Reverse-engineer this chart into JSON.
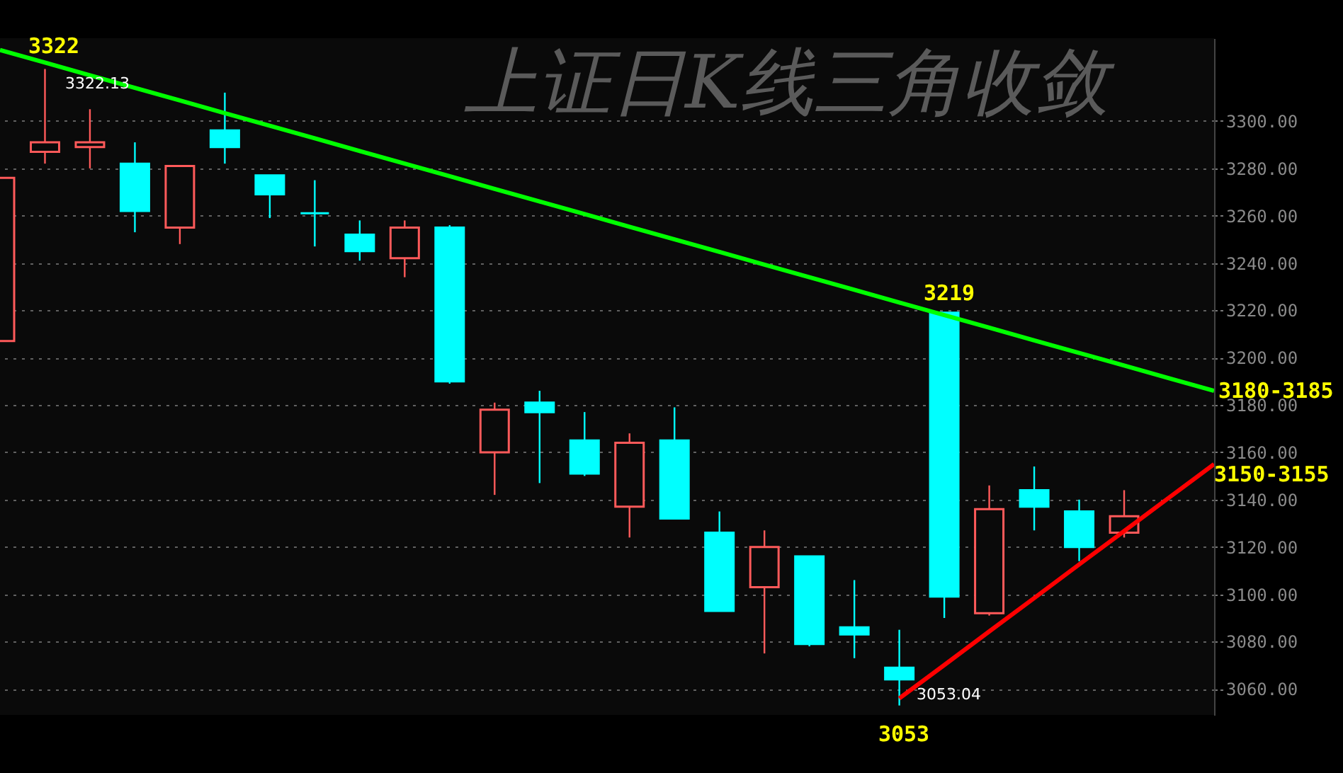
{
  "chart_data": {
    "type": "candlestick",
    "title": "上证日K线三角收敛",
    "ylim": [
      3049,
      3335
    ],
    "categories": [
      null,
      null,
      null,
      null,
      null,
      null,
      null,
      null,
      null,
      null,
      null,
      null,
      null,
      null,
      null,
      null,
      null,
      null,
      null,
      null,
      null,
      null,
      null,
      null,
      null,
      null,
      null,
      null
    ],
    "yticks": [
      {
        "value": 3060,
        "label": "3060.00"
      },
      {
        "value": 3080,
        "label": "3080.00"
      },
      {
        "value": 3100,
        "label": "3100.00"
      },
      {
        "value": 3120,
        "label": "3120.00"
      },
      {
        "value": 3140,
        "label": "3140.00"
      },
      {
        "value": 3160,
        "label": "3160.00"
      },
      {
        "value": 3180,
        "label": "3180.00"
      },
      {
        "value": 3200,
        "label": "3200.00"
      },
      {
        "value": 3220,
        "label": "3220.00"
      },
      {
        "value": 3240,
        "label": "3240.00"
      },
      {
        "value": 3260,
        "label": "3260.00"
      },
      {
        "value": 3280,
        "label": "3280.00"
      },
      {
        "value": 3300,
        "label": "3300.00"
      }
    ],
    "tick_labels": "y",
    "grid": "y",
    "series": [
      {
        "ohlc": [
          [
            3207,
            3276,
            3207,
            3276
          ],
          [
            3287,
            3322,
            3282,
            3291
          ],
          [
            3289,
            3305,
            3280,
            3291
          ],
          [
            3282,
            3291,
            3253,
            3262
          ],
          [
            3255,
            3281,
            3248,
            3281
          ],
          [
            3296,
            3312,
            3282,
            3289
          ],
          [
            3277,
            3277,
            3259,
            3269
          ],
          [
            3261,
            3275,
            3247,
            3261
          ],
          [
            3252,
            3258,
            3241,
            3245
          ],
          [
            3242,
            3258,
            3234,
            3255
          ],
          [
            3255,
            3256,
            3189,
            3190
          ],
          [
            3160,
            3181,
            3142,
            3178
          ],
          [
            3181,
            3186,
            3147,
            3177
          ],
          [
            3165,
            3177,
            3150,
            3151
          ],
          [
            3137,
            3168,
            3124,
            3164
          ],
          [
            3165,
            3179,
            3132,
            3132
          ],
          [
            3126,
            3135,
            3093,
            3093
          ],
          [
            3103,
            3127,
            3075,
            3120
          ],
          [
            3116,
            3116,
            3078,
            3079
          ],
          [
            3086,
            3106,
            3073,
            3083
          ],
          [
            3069,
            3085,
            3053,
            3064
          ],
          [
            3219,
            3219,
            3090,
            3099
          ],
          [
            3092,
            3146,
            3091,
            3136
          ],
          [
            3144,
            3154,
            3127,
            3137
          ],
          [
            3135,
            3140,
            3114,
            3120
          ],
          [
            3126,
            3144,
            3124,
            3133
          ],
          null,
          null
        ],
        "colors": [
          "#ff5a5a",
          "#ff5a5a",
          "#ff5a5a",
          "#00ffff",
          "#ff5a5a",
          "#00ffff",
          "#00ffff",
          "#00ffff",
          "#00ffff",
          "#ff5a5a",
          "#00ffff",
          "#ff5a5a",
          "#00ffff",
          "#00ffff",
          "#ff5a5a",
          "#00ffff",
          "#00ffff",
          "#ff5a5a",
          "#00ffff",
          "#00ffff",
          "#00ffff",
          "#00ffff",
          "#ff5a5a",
          "#00ffff",
          "#00ffff",
          "#ff5a5a",
          null,
          null
        ]
      },
      {
        "type": "line",
        "color": "#00ff00",
        "values": [
          3330.0,
          3324.7,
          3319.3,
          3314.0,
          3308.7,
          3303.3,
          3298.0,
          3292.7,
          3287.3,
          3282.0,
          3276.7,
          3271.3,
          3266.0,
          3260.7,
          3255.3,
          3250.0,
          3244.7,
          3239.3,
          3234.0,
          3228.7,
          3223.3,
          3218.0,
          3212.7,
          3207.3,
          3202.0,
          3196.7,
          3191.3,
          3186.0
        ]
      },
      {
        "type": "line",
        "color": "#ff0000",
        "values": [
          null,
          null,
          null,
          null,
          null,
          null,
          null,
          null,
          null,
          null,
          null,
          null,
          null,
          null,
          null,
          null,
          null,
          null,
          null,
          null,
          3056.0,
          3070.1,
          3084.3,
          3098.4,
          3112.6,
          3126.7,
          3140.9,
          3155.0
        ]
      }
    ],
    "annotations": [
      {
        "text": "3322",
        "y": 3322
      },
      {
        "text": "3322.13",
        "y": 3322.13
      },
      {
        "text": "3219",
        "y": 3219
      },
      {
        "text": "3053",
        "y": 3053
      },
      "3053.04",
      "3180-3185",
      "3150-3155"
    ]
  }
}
